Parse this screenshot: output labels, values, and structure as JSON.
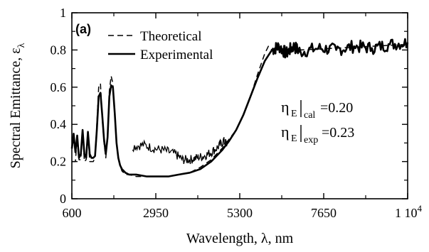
{
  "chart_data": {
    "type": "line",
    "panel_label": "(a)",
    "xlabel": "Wavelength, λ, nm",
    "ylabel": "Spectral Emittance, ε",
    "ylabel_sub": "λ",
    "xlim": [
      600,
      10000
    ],
    "ylim": [
      0,
      1
    ],
    "x_ticks": [
      600,
      2950,
      5300,
      7650,
      10000
    ],
    "x_tick_labels": [
      "600",
      "2950",
      "5300",
      "7650",
      "1 10"
    ],
    "x_tick_label_sup": "4",
    "y_ticks": [
      0,
      0.2,
      0.4,
      0.6,
      0.8,
      1
    ],
    "y_tick_labels": [
      "0",
      "0.2",
      "0.4",
      "0.6",
      "0.8",
      "1"
    ],
    "grid": false,
    "legend_position": "top-left",
    "series": [
      {
        "name": "Theoretical",
        "style": "dashed",
        "color": "#000000",
        "x": [
          600,
          700,
          750,
          800,
          850,
          900,
          950,
          1000,
          1050,
          1100,
          1150,
          1200,
          1250,
          1300,
          1350,
          1400,
          1450,
          1500,
          1550,
          1600,
          1650,
          1700,
          1750,
          1800,
          1850,
          1900,
          1950,
          2000,
          2050,
          2100,
          2200,
          2400,
          2700,
          3000,
          3300,
          3600,
          3900,
          4200,
          4500,
          4800,
          5000,
          5200,
          5400,
          5600,
          5800,
          6000,
          6050,
          6100,
          6200,
          6400,
          7000,
          8000,
          9000,
          10000
        ],
        "y": [
          0.2,
          0.2,
          0.33,
          0.21,
          0.21,
          0.36,
          0.2,
          0.21,
          0.35,
          0.2,
          0.2,
          0.2,
          0.22,
          0.4,
          0.6,
          0.62,
          0.43,
          0.3,
          0.22,
          0.34,
          0.58,
          0.66,
          0.62,
          0.45,
          0.3,
          0.22,
          0.18,
          0.15,
          0.14,
          0.13,
          0.13,
          0.12,
          0.12,
          0.12,
          0.12,
          0.13,
          0.14,
          0.17,
          0.21,
          0.27,
          0.32,
          0.37,
          0.45,
          0.55,
          0.67,
          0.78,
          0.8,
          0.82,
          0.8,
          0.8,
          0.8,
          0.81,
          0.82,
          0.83
        ]
      },
      {
        "name": "Experimental",
        "style": "solid",
        "color": "#000000",
        "x": [
          600,
          650,
          700,
          750,
          800,
          850,
          900,
          950,
          1000,
          1050,
          1100,
          1150,
          1200,
          1250,
          1300,
          1350,
          1400,
          1450,
          1500,
          1550,
          1600,
          1650,
          1700,
          1750,
          1800,
          1850,
          1900,
          1950,
          2000,
          2050,
          2100,
          2200,
          2400,
          2700,
          3000,
          3300,
          3600,
          3900,
          4200,
          4500,
          4800,
          5000,
          5200,
          5400,
          5600,
          5800,
          6000,
          6200,
          6400,
          6600,
          6800,
          7000,
          7500,
          8000,
          8500,
          9000,
          9500,
          10000
        ],
        "y": [
          0.27,
          0.35,
          0.25,
          0.34,
          0.22,
          0.24,
          0.37,
          0.24,
          0.22,
          0.36,
          0.24,
          0.22,
          0.22,
          0.23,
          0.37,
          0.55,
          0.57,
          0.45,
          0.32,
          0.24,
          0.33,
          0.55,
          0.61,
          0.6,
          0.46,
          0.3,
          0.22,
          0.18,
          0.16,
          0.15,
          0.14,
          0.13,
          0.13,
          0.12,
          0.12,
          0.12,
          0.13,
          0.14,
          0.16,
          0.2,
          0.26,
          0.31,
          0.37,
          0.45,
          0.55,
          0.65,
          0.74,
          0.8,
          0.82,
          0.78,
          0.82,
          0.79,
          0.81,
          0.8,
          0.82,
          0.81,
          0.83,
          0.84
        ]
      }
    ],
    "noisy_segment": {
      "x": [
        2300,
        2600,
        2900,
        3200,
        3500,
        3700,
        3900,
        4100,
        4300,
        4500,
        4700,
        4850,
        4950
      ],
      "y": [
        0.28,
        0.29,
        0.27,
        0.26,
        0.24,
        0.21,
        0.21,
        0.22,
        0.23,
        0.25,
        0.28,
        0.31,
        0.29
      ]
    },
    "annotations": [
      {
        "main": "η",
        "sub": "E",
        "tail_sub": "cal",
        "value": "=0.20"
      },
      {
        "main": "η",
        "sub": "E",
        "tail_sub": "exp",
        "value": "=0.23"
      }
    ]
  }
}
